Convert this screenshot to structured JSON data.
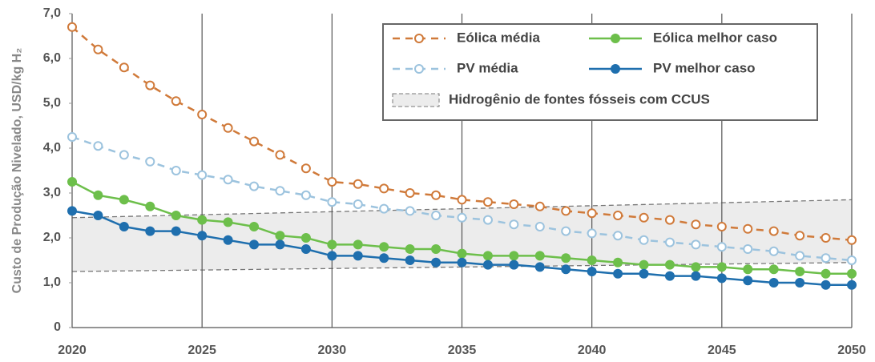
{
  "chart_data": {
    "type": "line",
    "y_label": "Custo de Produção Nivelado, USD/kg H₂",
    "x": [
      2020,
      2021,
      2022,
      2023,
      2024,
      2025,
      2026,
      2027,
      2028,
      2029,
      2030,
      2031,
      2032,
      2033,
      2034,
      2035,
      2036,
      2037,
      2038,
      2039,
      2040,
      2041,
      2042,
      2043,
      2044,
      2045,
      2046,
      2047,
      2048,
      2049,
      2050
    ],
    "xlim": [
      2020,
      2050
    ],
    "xticks": [
      2020,
      2025,
      2030,
      2035,
      2040,
      2045,
      2050
    ],
    "ylim": [
      0,
      7
    ],
    "yticks": [
      0,
      {
        "value": 1,
        "label": "1,0"
      },
      {
        "value": 2,
        "label": "2,0"
      },
      {
        "value": 3,
        "label": "3,0"
      },
      {
        "value": 4,
        "label": "4,0"
      },
      {
        "value": 5,
        "label": "5,0"
      },
      {
        "value": 6,
        "label": "6,0"
      },
      {
        "value": 7,
        "label": "7,0"
      }
    ],
    "grid": "x",
    "legend": "upper right",
    "series": [
      {
        "name": "Eólica média",
        "color": "#d07a3a",
        "dashed": true,
        "marker": "open",
        "values": [
          6.7,
          6.2,
          5.8,
          5.4,
          5.05,
          4.75,
          4.45,
          4.15,
          3.85,
          3.55,
          3.25,
          3.2,
          3.1,
          3.0,
          2.95,
          2.85,
          2.8,
          2.75,
          2.7,
          2.6,
          2.55,
          2.5,
          2.45,
          2.4,
          2.3,
          2.25,
          2.2,
          2.15,
          2.05,
          2.0,
          1.95
        ]
      },
      {
        "name": "Eólica melhor caso",
        "color": "#6dbf4b",
        "dashed": false,
        "marker": "filled",
        "values": [
          3.25,
          2.95,
          2.85,
          2.7,
          2.5,
          2.4,
          2.35,
          2.25,
          2.05,
          2.0,
          1.85,
          1.85,
          1.8,
          1.75,
          1.75,
          1.65,
          1.6,
          1.6,
          1.6,
          1.55,
          1.5,
          1.45,
          1.4,
          1.4,
          1.35,
          1.35,
          1.3,
          1.3,
          1.25,
          1.2,
          1.2
        ]
      },
      {
        "name": "PV média",
        "color": "#9cc3de",
        "dashed": true,
        "marker": "open",
        "values": [
          4.25,
          4.05,
          3.85,
          3.7,
          3.5,
          3.4,
          3.3,
          3.15,
          3.05,
          2.95,
          2.8,
          2.75,
          2.65,
          2.6,
          2.5,
          2.45,
          2.4,
          2.3,
          2.25,
          2.15,
          2.1,
          2.05,
          1.95,
          1.9,
          1.85,
          1.8,
          1.75,
          1.7,
          1.6,
          1.55,
          1.5
        ]
      },
      {
        "name": "PV melhor caso",
        "color": "#1f6fae",
        "dashed": false,
        "marker": "filled",
        "values": [
          2.6,
          2.5,
          2.25,
          2.15,
          2.15,
          2.05,
          1.95,
          1.85,
          1.85,
          1.75,
          1.6,
          1.6,
          1.55,
          1.5,
          1.45,
          1.45,
          1.4,
          1.4,
          1.35,
          1.3,
          1.25,
          1.2,
          1.2,
          1.15,
          1.15,
          1.1,
          1.05,
          1.0,
          1.0,
          0.95,
          0.95
        ]
      }
    ],
    "band": {
      "name": "Hidrogênio de fontes fósseis com CCUS",
      "color": "#ececec",
      "edge_color": "#777777",
      "x": [
        2020,
        2050
      ],
      "lower": [
        1.25,
        1.45
      ],
      "upper": [
        2.45,
        2.85
      ]
    }
  }
}
